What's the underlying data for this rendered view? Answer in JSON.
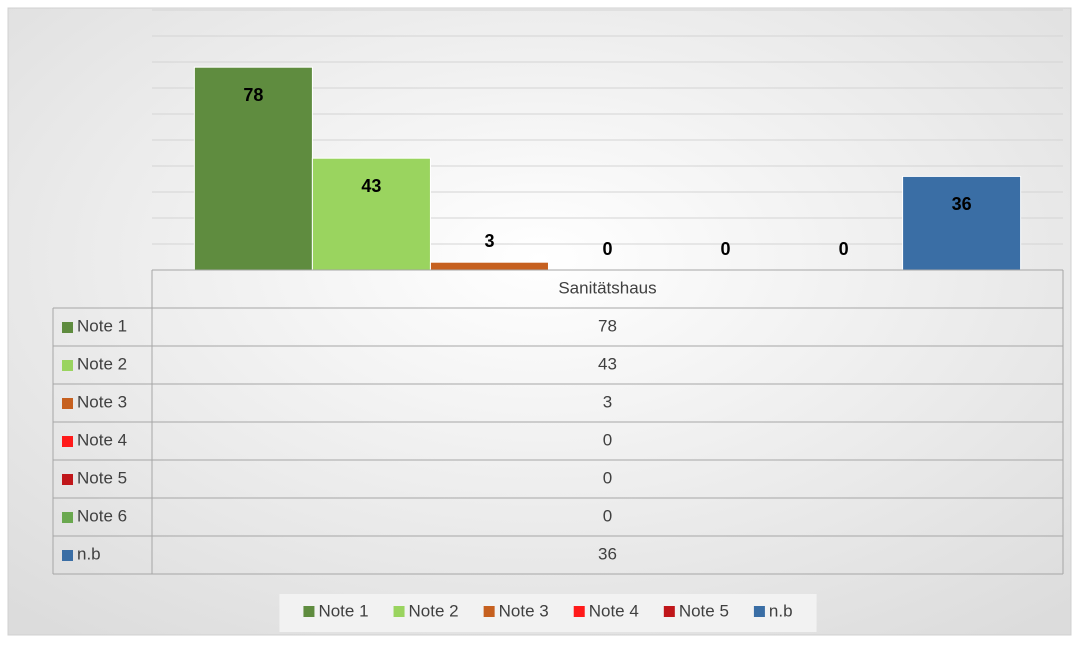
{
  "chart_data": {
    "type": "bar",
    "categories": [
      "Sanitätshaus"
    ],
    "series": [
      {
        "name": "Note 1",
        "color": "#5f8c3f",
        "values": [
          78
        ]
      },
      {
        "name": "Note 2",
        "color": "#9ad45f",
        "values": [
          43
        ]
      },
      {
        "name": "Note 3",
        "color": "#c6601f",
        "values": [
          3
        ]
      },
      {
        "name": "Note 4",
        "color": "#ff1a1a",
        "values": [
          0
        ]
      },
      {
        "name": "Note 5",
        "color": "#c0161a",
        "values": [
          0
        ]
      },
      {
        "name": "Note 6",
        "color": "#6aa84f",
        "values": [
          0
        ],
        "in_legend": false
      },
      {
        "name": "n.b",
        "color": "#3a6ea5",
        "values": [
          36
        ]
      }
    ],
    "ylim": [
      0,
      100
    ],
    "yticks": [
      0,
      10,
      20,
      30,
      40,
      50,
      60,
      70,
      80,
      90,
      100
    ],
    "grid": true,
    "data_table": true,
    "legend": "bottom"
  }
}
